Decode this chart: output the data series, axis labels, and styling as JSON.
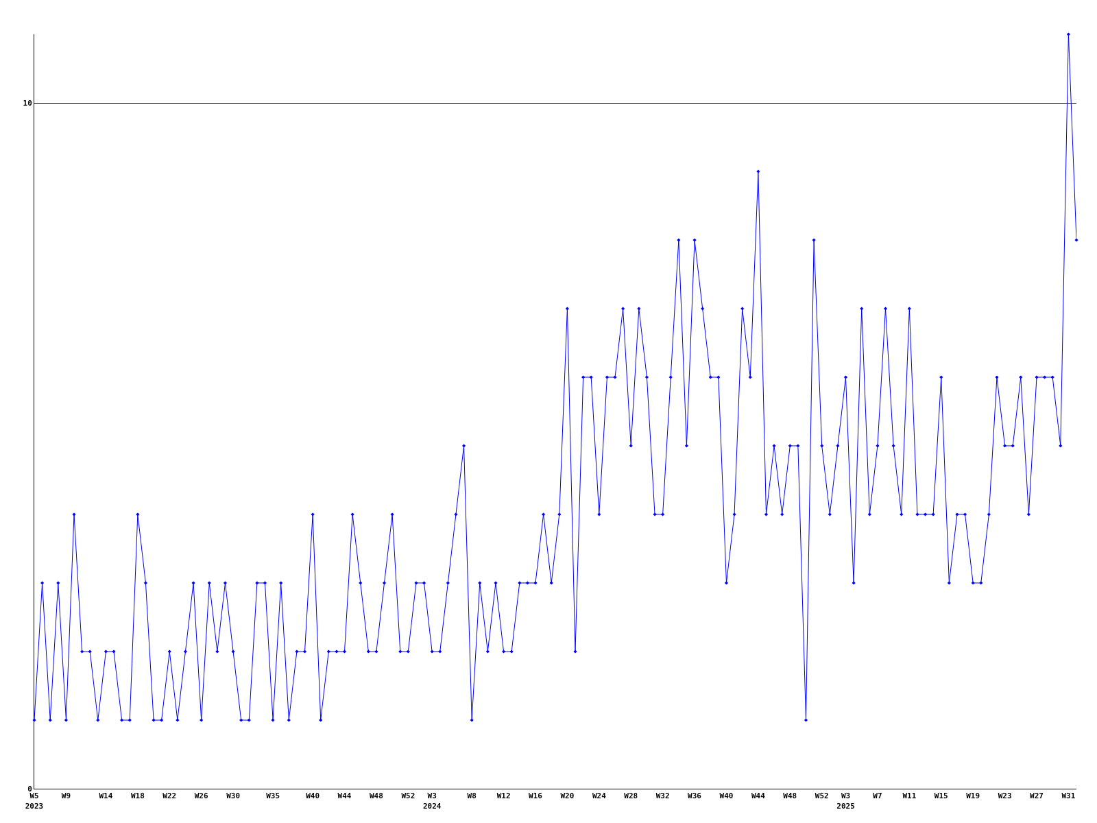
{
  "chart_data": {
    "type": "line",
    "x": [
      "2023-01-30",
      "2023-02-06",
      "2023-02-13",
      "2023-02-20",
      "2023-02-27",
      "2023-03-06",
      "2023-03-13",
      "2023-03-20",
      "2023-03-27",
      "2023-04-03",
      "2023-04-10",
      "2023-04-17",
      "2023-04-24",
      "2023-05-01",
      "2023-05-08",
      "2023-05-15",
      "2023-05-22",
      "2023-05-29",
      "2023-06-05",
      "2023-06-12",
      "2023-06-19",
      "2023-06-26",
      "2023-07-03",
      "2023-07-10",
      "2023-07-17",
      "2023-07-24",
      "2023-07-31",
      "2023-08-07",
      "2023-08-14",
      "2023-08-21",
      "2023-08-28",
      "2023-09-04",
      "2023-09-11",
      "2023-09-18",
      "2023-09-25",
      "2023-10-02",
      "2023-10-09",
      "2023-10-16",
      "2023-10-23",
      "2023-10-30",
      "2023-11-06",
      "2023-11-13",
      "2023-11-20",
      "2023-11-27",
      "2023-12-04",
      "2023-12-11",
      "2023-12-18",
      "2023-12-25",
      "2024-01-01",
      "2024-01-08",
      "2024-01-15",
      "2024-01-22",
      "2024-01-29",
      "2024-02-05",
      "2024-02-12",
      "2024-02-19",
      "2024-02-26",
      "2024-03-04",
      "2024-03-11",
      "2024-03-18",
      "2024-03-25",
      "2024-04-01",
      "2024-04-08",
      "2024-04-15",
      "2024-04-22",
      "2024-04-29",
      "2024-05-06",
      "2024-05-13",
      "2024-05-20",
      "2024-05-27",
      "2024-06-03",
      "2024-06-10",
      "2024-06-17",
      "2024-06-24",
      "2024-07-01",
      "2024-07-08",
      "2024-07-15",
      "2024-07-22",
      "2024-07-29",
      "2024-08-05",
      "2024-08-12",
      "2024-08-19",
      "2024-08-26",
      "2024-09-02",
      "2024-09-09",
      "2024-09-16",
      "2024-09-23",
      "2024-09-30",
      "2024-10-07",
      "2024-10-14",
      "2024-10-21",
      "2024-10-28",
      "2024-11-04",
      "2024-11-11",
      "2024-11-18",
      "2024-11-25",
      "2024-12-02",
      "2024-12-09",
      "2024-12-16",
      "2024-12-23",
      "2024-12-30",
      "2025-01-06",
      "2025-01-13",
      "2025-01-20",
      "2025-01-27",
      "2025-02-03",
      "2025-02-10",
      "2025-02-17",
      "2025-02-24",
      "2025-03-03",
      "2025-03-10",
      "2025-03-17",
      "2025-03-24",
      "2025-03-31",
      "2025-04-07",
      "2025-04-14",
      "2025-04-21",
      "2025-04-28",
      "2025-05-05",
      "2025-05-12",
      "2025-05-19",
      "2025-05-26",
      "2025-06-02",
      "2025-06-09",
      "2025-06-16",
      "2025-06-23",
      "2025-06-30",
      "2025-07-07",
      "2025-07-14",
      "2025-07-21",
      "2025-07-28",
      "2025-08-04"
    ],
    "series": [
      {
        "color": "#0000ff",
        "values": [
          1,
          3,
          1,
          3,
          1,
          4,
          2,
          2,
          1,
          2,
          2,
          1,
          1,
          4,
          3,
          1,
          1,
          2,
          1,
          2,
          3,
          1,
          3,
          2,
          3,
          2,
          1,
          1,
          3,
          3,
          1,
          3,
          1,
          2,
          2,
          4,
          1,
          2,
          2,
          2,
          4,
          3,
          2,
          2,
          3,
          4,
          2,
          2,
          3,
          3,
          2,
          2,
          3,
          4,
          5,
          1,
          3,
          2,
          3,
          2,
          2,
          3,
          3,
          3,
          4,
          3,
          4,
          7,
          2,
          6,
          6,
          4,
          6,
          6,
          7,
          5,
          7,
          6,
          4,
          4,
          6,
          8,
          5,
          8,
          7,
          6,
          6,
          3,
          4,
          7,
          6,
          9,
          4,
          5,
          4,
          5,
          5,
          1,
          8,
          5,
          4,
          5,
          6,
          3,
          7,
          4,
          5,
          7,
          5,
          4,
          7,
          4,
          4,
          4,
          6,
          3,
          4,
          4,
          3,
          3,
          4,
          6,
          5,
          5,
          6,
          4,
          6,
          6,
          6,
          5,
          11,
          8
        ]
      }
    ],
    "xlim": [
      "2023-01-30",
      "2025-08-04"
    ],
    "xticks": [
      {
        "value": "2023-01-30",
        "label": "W5\n2023"
      },
      {
        "value": "2023-02-27",
        "label": "W9"
      },
      {
        "value": "2023-04-03",
        "label": "W14"
      },
      {
        "value": "2023-05-01",
        "label": "W18"
      },
      {
        "value": "2023-05-29",
        "label": "W22"
      },
      {
        "value": "2023-06-26",
        "label": "W26"
      },
      {
        "value": "2023-07-24",
        "label": "W30"
      },
      {
        "value": "2023-08-28",
        "label": "W35"
      },
      {
        "value": "2023-10-02",
        "label": "W40"
      },
      {
        "value": "2023-10-30",
        "label": "W44"
      },
      {
        "value": "2023-11-27",
        "label": "W48"
      },
      {
        "value": "2023-12-25",
        "label": "W52"
      },
      {
        "value": "2024-01-15",
        "label": "W3\n2024"
      },
      {
        "value": "2024-02-19",
        "label": "W8"
      },
      {
        "value": "2024-03-18",
        "label": "W12"
      },
      {
        "value": "2024-04-15",
        "label": "W16"
      },
      {
        "value": "2024-05-13",
        "label": "W20"
      },
      {
        "value": "2024-06-10",
        "label": "W24"
      },
      {
        "value": "2024-07-08",
        "label": "W28"
      },
      {
        "value": "2024-08-05",
        "label": "W32"
      },
      {
        "value": "2024-09-02",
        "label": "W36"
      },
      {
        "value": "2024-09-30",
        "label": "W40"
      },
      {
        "value": "2024-10-28",
        "label": "W44"
      },
      {
        "value": "2024-11-25",
        "label": "W48"
      },
      {
        "value": "2024-12-23",
        "label": "W52"
      },
      {
        "value": "2025-01-13",
        "label": "W3\n2025"
      },
      {
        "value": "2025-02-10",
        "label": "W7"
      },
      {
        "value": "2025-03-10",
        "label": "W11"
      },
      {
        "value": "2025-04-07",
        "label": "W15"
      },
      {
        "value": "2025-05-05",
        "label": "W19"
      },
      {
        "value": "2025-06-02",
        "label": "W23"
      },
      {
        "value": "2025-06-30",
        "label": "W27"
      },
      {
        "value": "2025-07-28",
        "label": "W31"
      }
    ],
    "ylim": [
      0,
      11
    ],
    "yticks": [
      0,
      10
    ],
    "grid": "y",
    "marker": "diamond",
    "line_style": "solid"
  }
}
